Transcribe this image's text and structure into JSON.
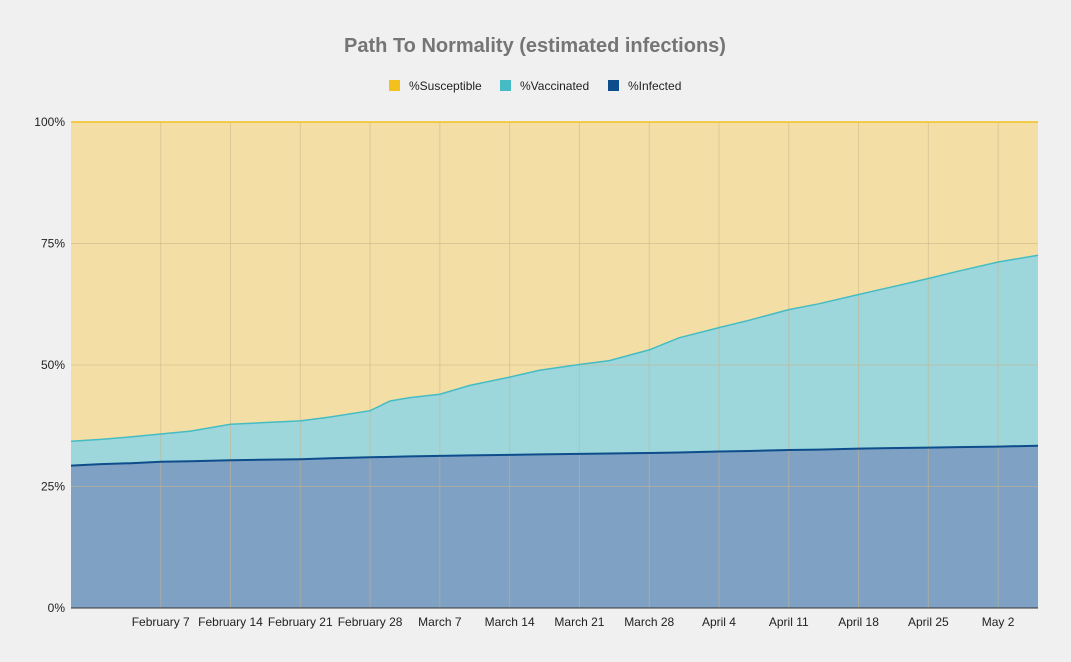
{
  "colors": {
    "background": "#f0f0f0",
    "grid": "#c9b48a",
    "susceptible_fill": "#f3dfa6",
    "susceptible_line": "#f4c01c",
    "vaccinated_fill": "#9dd6db",
    "vaccinated_line": "#45bcc4",
    "infected_fill": "#7fa1c3",
    "infected_line": "#0e4d8c",
    "axis": "#333333"
  },
  "chart_data": {
    "type": "area",
    "stacked": true,
    "title": "Path To Normality (estimated infections)",
    "legend_position": "top",
    "grid": true,
    "x_range": [
      "2021-01-29",
      "2021-05-06"
    ],
    "ylim": [
      0,
      100
    ],
    "y_ticks": [
      0,
      25,
      50,
      75,
      100
    ],
    "y_tick_labels": [
      "0%",
      "25%",
      "50%",
      "75%",
      "100%"
    ],
    "x_ticks": [
      "2021-02-07",
      "2021-02-14",
      "2021-02-21",
      "2021-02-28",
      "2021-03-07",
      "2021-03-14",
      "2021-03-21",
      "2021-03-28",
      "2021-04-04",
      "2021-04-11",
      "2021-04-18",
      "2021-04-25",
      "2021-05-02"
    ],
    "x_tick_labels": [
      "February 7",
      "February 14",
      "February 21",
      "February 28",
      "March 7",
      "March 14",
      "March 21",
      "March 28",
      "April 4",
      "April 11",
      "April 18",
      "April 25",
      "May 2"
    ],
    "x": [
      "2021-01-29",
      "2021-02-01",
      "2021-02-04",
      "2021-02-07",
      "2021-02-10",
      "2021-02-14",
      "2021-02-17",
      "2021-02-21",
      "2021-02-24",
      "2021-02-28",
      "2021-03-02",
      "2021-03-04",
      "2021-03-07",
      "2021-03-10",
      "2021-03-14",
      "2021-03-17",
      "2021-03-21",
      "2021-03-24",
      "2021-03-28",
      "2021-03-31",
      "2021-04-04",
      "2021-04-07",
      "2021-04-11",
      "2021-04-14",
      "2021-04-18",
      "2021-04-21",
      "2021-04-25",
      "2021-04-28",
      "2021-05-02",
      "2021-05-06"
    ],
    "series": [
      {
        "name": "%Infected",
        "values": [
          29.3,
          29.6,
          29.8,
          30.1,
          30.2,
          30.4,
          30.5,
          30.6,
          30.8,
          31.0,
          31.1,
          31.2,
          31.3,
          31.4,
          31.5,
          31.6,
          31.7,
          31.8,
          31.9,
          32.0,
          32.2,
          32.3,
          32.5,
          32.6,
          32.8,
          32.9,
          33.0,
          33.1,
          33.2,
          33.4
        ]
      },
      {
        "name": "%Vaccinated",
        "values": [
          5.0,
          5.1,
          5.4,
          5.7,
          6.2,
          7.4,
          7.6,
          7.9,
          8.5,
          9.6,
          11.5,
          12.1,
          12.7,
          14.4,
          16.0,
          17.3,
          18.4,
          19.1,
          21.2,
          23.6,
          25.5,
          26.9,
          28.9,
          30.0,
          31.7,
          33.0,
          34.8,
          36.2,
          38.0,
          39.2
        ]
      },
      {
        "name": "%Susceptible",
        "values": [
          65.7,
          65.3,
          64.8,
          64.2,
          63.6,
          62.2,
          61.9,
          61.5,
          60.7,
          59.4,
          57.4,
          56.7,
          56.0,
          54.2,
          52.5,
          51.1,
          49.9,
          49.1,
          46.9,
          44.4,
          42.3,
          40.8,
          38.6,
          37.4,
          35.5,
          34.1,
          32.2,
          30.7,
          28.8,
          27.4
        ]
      }
    ]
  }
}
